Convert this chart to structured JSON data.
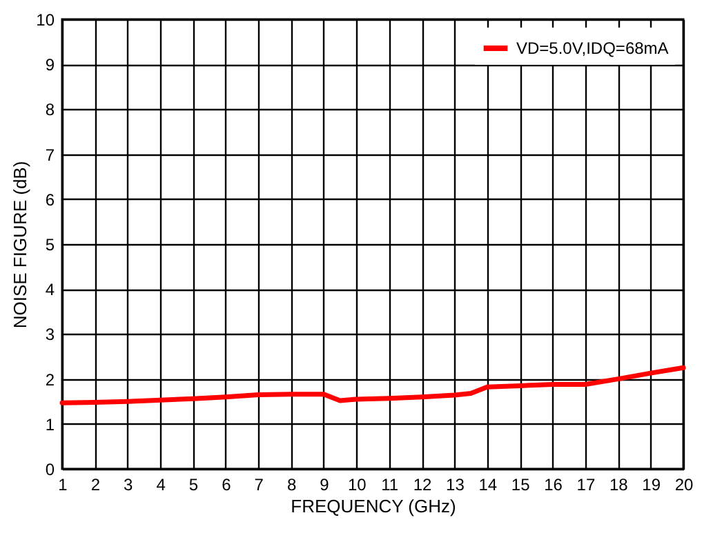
{
  "chart_data": {
    "type": "line",
    "xlabel": "FREQUENCY (GHz)",
    "ylabel": "NOISE FIGURE (dB)",
    "x": [
      1,
      2,
      3,
      4,
      5,
      6,
      7,
      8,
      9,
      9.5,
      10,
      11,
      12,
      13,
      13.5,
      14,
      15,
      16,
      17,
      18,
      19,
      20
    ],
    "series": [
      {
        "name": "VD=5.0V,IDQ=68mA",
        "color": "#ff0000",
        "values": [
          1.47,
          1.48,
          1.5,
          1.53,
          1.56,
          1.6,
          1.65,
          1.66,
          1.66,
          1.52,
          1.55,
          1.57,
          1.6,
          1.64,
          1.68,
          1.82,
          1.85,
          1.88,
          1.88,
          2.0,
          2.13,
          2.25
        ]
      }
    ],
    "xlim": [
      1,
      20
    ],
    "xticks": [
      1,
      2,
      3,
      4,
      5,
      6,
      7,
      8,
      9,
      10,
      11,
      12,
      13,
      14,
      15,
      16,
      17,
      18,
      19,
      20
    ],
    "ylim": [
      0,
      10
    ],
    "yticks": [
      0,
      1,
      2,
      3,
      4,
      5,
      6,
      7,
      8,
      9,
      10
    ],
    "grid": true,
    "legend": "top right",
    "marker": "none",
    "line_style": "solid"
  }
}
